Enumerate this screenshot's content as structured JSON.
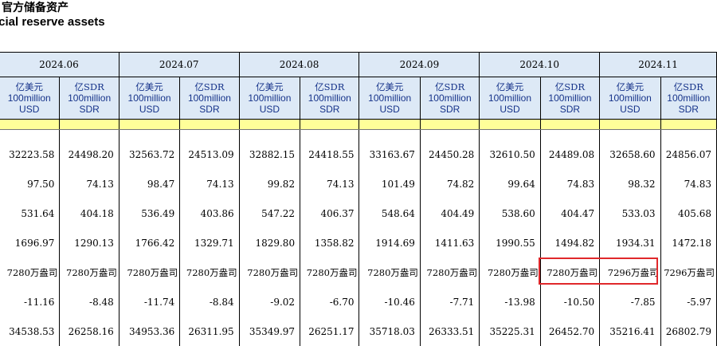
{
  "title": {
    "cn": "官方储备资产",
    "en": "icial reserve assets"
  },
  "months": [
    "2024.06",
    "2024.07",
    "2024.08",
    "2024.09",
    "2024.10",
    "2024.11"
  ],
  "units": {
    "usd": {
      "cn": "亿美元",
      "en1": "100million",
      "en2": "USD"
    },
    "sdr": {
      "cn": "亿SDR",
      "en1": "100million",
      "en2": "SDR"
    }
  },
  "rows": [
    [
      "32223.58",
      "24498.20",
      "32563.72",
      "24513.09",
      "32882.15",
      "24418.55",
      "33163.67",
      "24450.28",
      "32610.50",
      "24489.08",
      "32658.60",
      "24856.07"
    ],
    [
      "97.50",
      "74.13",
      "98.47",
      "74.13",
      "99.82",
      "74.13",
      "101.49",
      "74.82",
      "99.64",
      "74.83",
      "98.32",
      "74.83"
    ],
    [
      "531.64",
      "404.18",
      "536.49",
      "403.86",
      "547.22",
      "406.37",
      "548.64",
      "404.49",
      "538.60",
      "404.47",
      "533.03",
      "405.68"
    ],
    [
      "1696.97",
      "1290.13",
      "1766.42",
      "1329.71",
      "1829.80",
      "1358.82",
      "1914.69",
      "1411.63",
      "1990.55",
      "1494.82",
      "1934.31",
      "1472.18"
    ],
    [
      "7280万盎司",
      "7280万盎司",
      "7280万盎司",
      "7280万盎司",
      "7280万盎司",
      "7280万盎司",
      "7280万盎司",
      "7280万盎司",
      "7280万盎司",
      "7280万盎司",
      "7296万盎司",
      "7296万盎司"
    ],
    [
      "-11.16",
      "-8.48",
      "-11.74",
      "-8.84",
      "-9.02",
      "-6.70",
      "-10.46",
      "-7.71",
      "-13.98",
      "-10.50",
      "-7.85",
      "-5.97"
    ],
    [
      "34538.53",
      "26258.16",
      "34953.36",
      "26311.95",
      "35349.97",
      "26251.17",
      "35718.03",
      "26333.51",
      "35225.31",
      "26452.70",
      "35216.41",
      "26802.79"
    ]
  ],
  "highlight_color": "#e0282b",
  "header_bg": "#dde9f6",
  "band_color": "#ffff99"
}
